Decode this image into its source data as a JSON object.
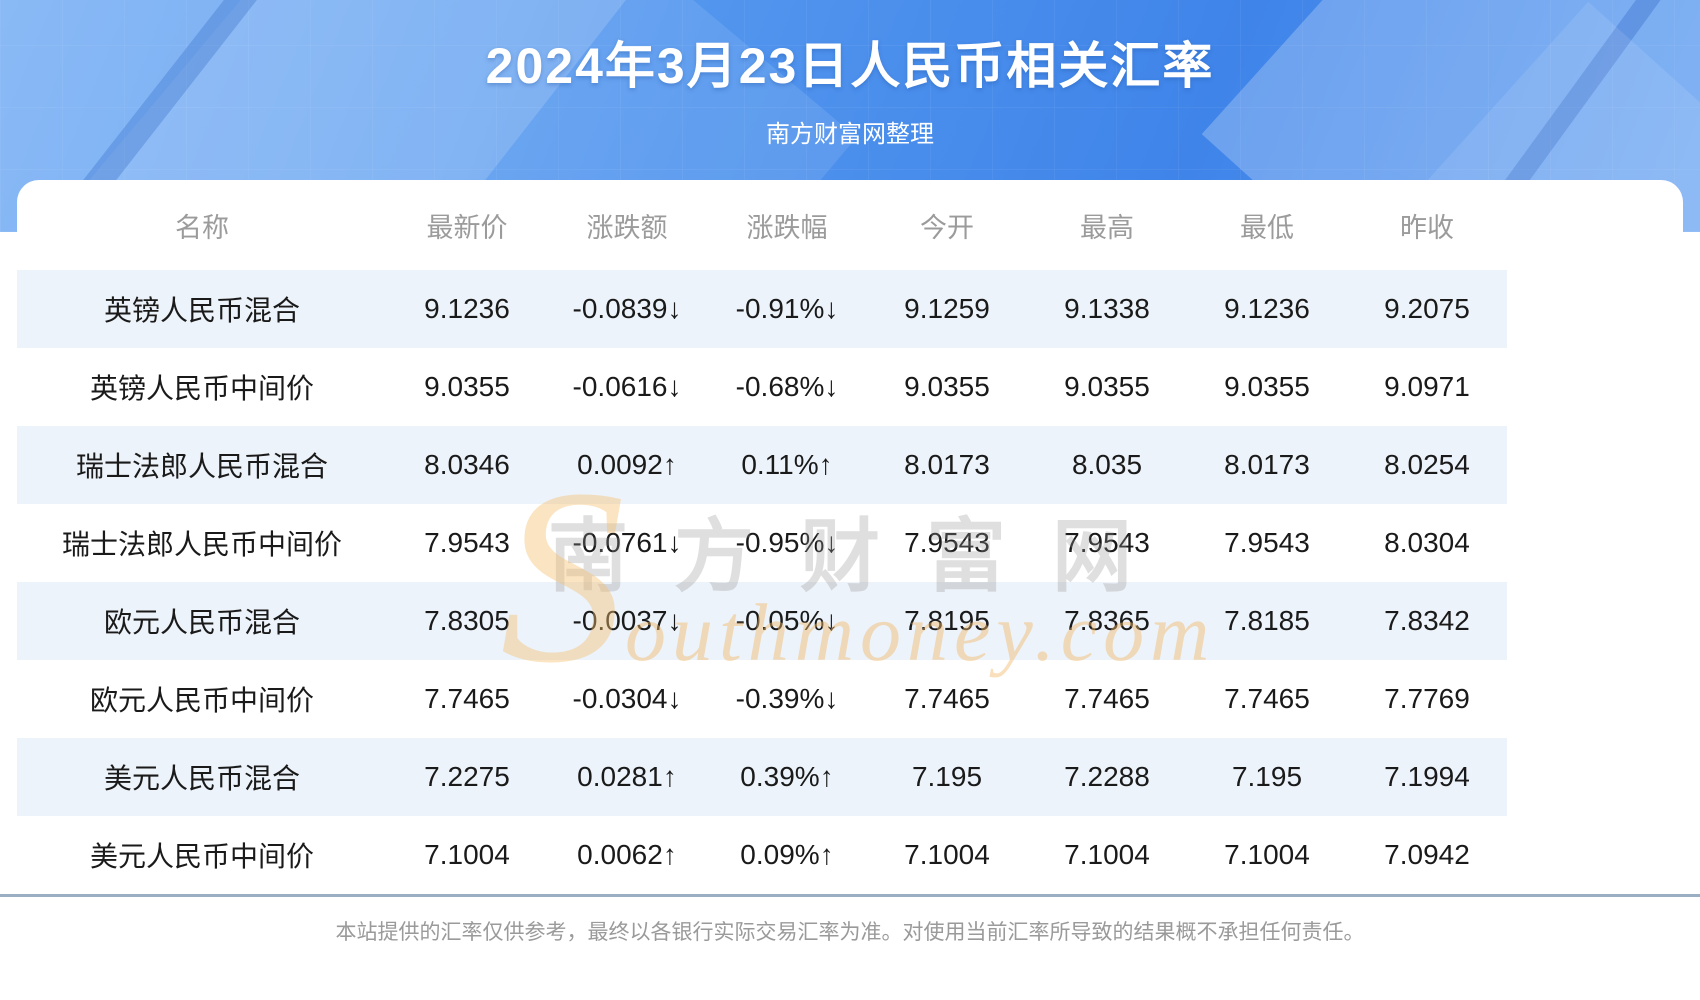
{
  "header": {
    "title": "2024年3月23日人民币相关汇率",
    "subtitle": "南方财富网整理"
  },
  "table": {
    "columns": [
      "名称",
      "最新价",
      "涨跌额",
      "涨跌幅",
      "今开",
      "最高",
      "最低",
      "昨收"
    ],
    "rows": [
      {
        "name": "英镑人民币混合",
        "latest": "9.1236",
        "change": "-0.0839↓",
        "change_pct": "-0.91%↓",
        "open": "9.1259",
        "high": "9.1338",
        "low": "9.1236",
        "prev_close": "9.2075",
        "trend": "down"
      },
      {
        "name": "英镑人民币中间价",
        "latest": "9.0355",
        "change": "-0.0616↓",
        "change_pct": "-0.68%↓",
        "open": "9.0355",
        "high": "9.0355",
        "low": "9.0355",
        "prev_close": "9.0971",
        "trend": "down"
      },
      {
        "name": "瑞士法郎人民币混合",
        "latest": "8.0346",
        "change": "0.0092↑",
        "change_pct": "0.11%↑",
        "open": "8.0173",
        "high": "8.035",
        "low": "8.0173",
        "prev_close": "8.0254",
        "trend": "up"
      },
      {
        "name": "瑞士法郎人民币中间价",
        "latest": "7.9543",
        "change": "-0.0761↓",
        "change_pct": "-0.95%↓",
        "open": "7.9543",
        "high": "7.9543",
        "low": "7.9543",
        "prev_close": "8.0304",
        "trend": "down"
      },
      {
        "name": "欧元人民币混合",
        "latest": "7.8305",
        "change": "-0.0037↓",
        "change_pct": "-0.05%↓",
        "open": "7.8195",
        "high": "7.8365",
        "low": "7.8185",
        "prev_close": "7.8342",
        "trend": "down"
      },
      {
        "name": "欧元人民币中间价",
        "latest": "7.7465",
        "change": "-0.0304↓",
        "change_pct": "-0.39%↓",
        "open": "7.7465",
        "high": "7.7465",
        "low": "7.7465",
        "prev_close": "7.7769",
        "trend": "down"
      },
      {
        "name": "美元人民币混合",
        "latest": "7.2275",
        "change": "0.0281↑",
        "change_pct": "0.39%↑",
        "open": "7.195",
        "high": "7.2288",
        "low": "7.195",
        "prev_close": "7.1994",
        "trend": "up"
      },
      {
        "name": "美元人民币中间价",
        "latest": "7.1004",
        "change": "0.0062↑",
        "change_pct": "0.09%↑",
        "open": "7.1004",
        "high": "7.1004",
        "low": "7.1004",
        "prev_close": "7.0942",
        "trend": "up"
      }
    ]
  },
  "watermark": {
    "cn": "南方财富网",
    "big_letter": "S",
    "rest": "outhmoney.com"
  },
  "footer": {
    "disclaimer": "本站提供的汇率仅供参考，最终以各银行实际交易汇率为准。对使用当前汇率所导致的结果概不承担任何责任。"
  },
  "colors": {
    "up_red": "#ec1212",
    "down_green": "#089b08",
    "banner_blue": "#4a90ec",
    "stripe_blue": "#edf3fa",
    "divider_blue_gray": "#9aafc4",
    "header_gray": "#9b9b9b"
  },
  "chart_data": {
    "type": "table",
    "title": "2024年3月23日人民币相关汇率",
    "subtitle": "南方财富网整理",
    "columns": [
      "名称",
      "最新价",
      "涨跌额",
      "涨跌幅",
      "今开",
      "最高",
      "最低",
      "昨收"
    ],
    "rows": [
      [
        "英镑人民币混合",
        9.1236,
        -0.0839,
        "-0.91%",
        9.1259,
        9.1338,
        9.1236,
        9.2075
      ],
      [
        "英镑人民币中间价",
        9.0355,
        -0.0616,
        "-0.68%",
        9.0355,
        9.0355,
        9.0355,
        9.0971
      ],
      [
        "瑞士法郎人民币混合",
        8.0346,
        0.0092,
        "0.11%",
        8.0173,
        8.035,
        8.0173,
        8.0254
      ],
      [
        "瑞士法郎人民币中间价",
        7.9543,
        -0.0761,
        "-0.95%",
        7.9543,
        7.9543,
        7.9543,
        8.0304
      ],
      [
        "欧元人民币混合",
        7.8305,
        -0.0037,
        "-0.05%",
        7.8195,
        7.8365,
        7.8185,
        7.8342
      ],
      [
        "欧元人民币中间价",
        7.7465,
        -0.0304,
        "-0.39%",
        7.7465,
        7.7465,
        7.7465,
        7.7769
      ],
      [
        "美元人民币混合",
        7.2275,
        0.0281,
        "0.39%",
        7.195,
        7.2288,
        7.195,
        7.1994
      ],
      [
        "美元人民币中间价",
        7.1004,
        0.0062,
        "0.09%",
        7.1004,
        7.1004,
        7.1004,
        7.0942
      ]
    ]
  }
}
